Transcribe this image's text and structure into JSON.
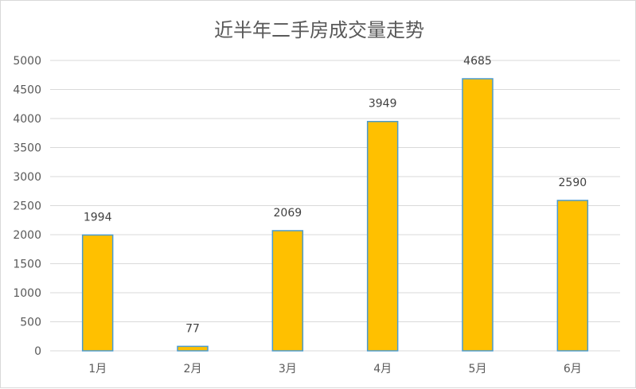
{
  "chart_data": {
    "type": "bar",
    "title": "近半年二手房成交量走势",
    "categories": [
      "1月",
      "2月",
      "3月",
      "4月",
      "5月",
      "6月"
    ],
    "values": [
      1994,
      77,
      2069,
      3949,
      4685,
      2590
    ],
    "data_labels": [
      "1994",
      "77",
      "2069",
      "3949",
      "4685",
      "2590"
    ],
    "ylim": [
      0,
      5000
    ],
    "yticks": [
      0,
      500,
      1000,
      1500,
      2000,
      2500,
      3000,
      3500,
      4000,
      4500,
      5000
    ],
    "ytick_labels": [
      "0",
      "500",
      "1000",
      "1500",
      "2000",
      "2500",
      "3000",
      "3500",
      "4000",
      "4500",
      "5000"
    ],
    "xlabel": "",
    "ylabel": "",
    "grid": true,
    "legend": "none",
    "colors": {
      "bar_fill": "#FFC000",
      "bar_stroke": "#4A9BD0",
      "grid": "#d9d9d9"
    }
  }
}
